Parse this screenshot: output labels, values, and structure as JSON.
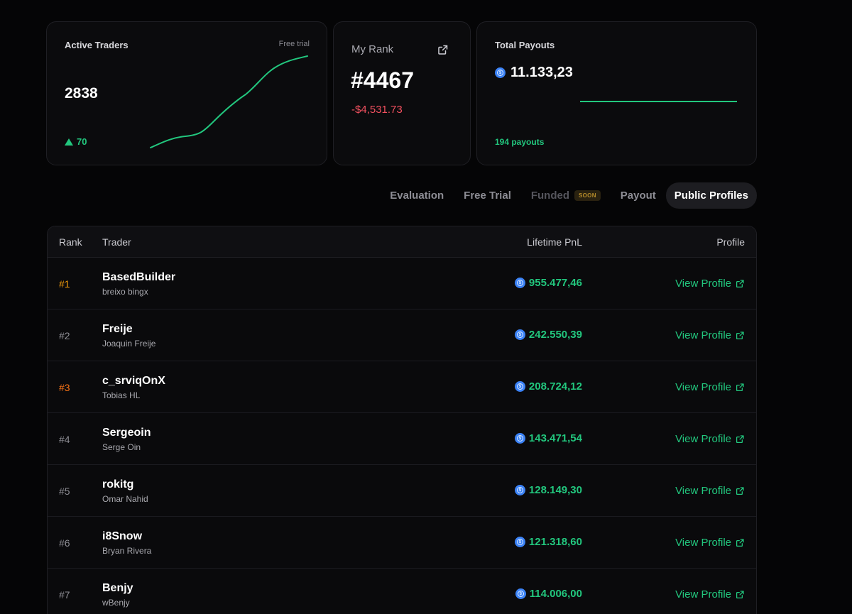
{
  "stats": {
    "active_traders": {
      "label": "Active Traders",
      "tag": "Free trial",
      "value": "2838",
      "delta": "70"
    },
    "my_rank": {
      "label": "My Rank",
      "value": "#4467",
      "pnl": "-$4,531.73"
    },
    "total_payouts": {
      "label": "Total Payouts",
      "amount": "11.133,23",
      "count": "194 payouts"
    }
  },
  "tabs": [
    {
      "label": "Evaluation",
      "state": "normal"
    },
    {
      "label": "Free Trial",
      "state": "normal"
    },
    {
      "label": "Funded",
      "state": "disabled",
      "badge": "SOON"
    },
    {
      "label": "Payout",
      "state": "normal"
    },
    {
      "label": "Public Profiles",
      "state": "active"
    }
  ],
  "table": {
    "headers": {
      "rank": "Rank",
      "trader": "Trader",
      "pnl": "Lifetime PnL",
      "profile": "Profile"
    },
    "profile_link": "View Profile",
    "rows": [
      {
        "rank": "#1",
        "name": "BasedBuilder",
        "sub": "breixo bingx",
        "pnl": "955.477,46"
      },
      {
        "rank": "#2",
        "name": "Freije",
        "sub": "Joaquin Freije",
        "pnl": "242.550,39"
      },
      {
        "rank": "#3",
        "name": "c_srviqOnX",
        "sub": "Tobias HL",
        "pnl": "208.724,12"
      },
      {
        "rank": "#4",
        "name": "Sergeoin",
        "sub": "Serge Oin",
        "pnl": "143.471,54"
      },
      {
        "rank": "#5",
        "name": "rokitg",
        "sub": "Omar Nahid",
        "pnl": "128.149,30"
      },
      {
        "rank": "#6",
        "name": "i8Snow",
        "sub": "Bryan Rivera",
        "pnl": "121.318,60"
      },
      {
        "rank": "#7",
        "name": "Benjy",
        "sub": "wBenjy",
        "pnl": "114.006,00"
      }
    ]
  },
  "colors": {
    "positive": "#22c77e",
    "negative": "#f2515f",
    "rank_first": "#f59e0b",
    "rank_third": "#f97316",
    "coin": "#3b82f6"
  },
  "icons": {
    "external_link": "external-link-icon",
    "coin": "usdc-coin-icon",
    "delta_up": "triangle-up-icon"
  }
}
